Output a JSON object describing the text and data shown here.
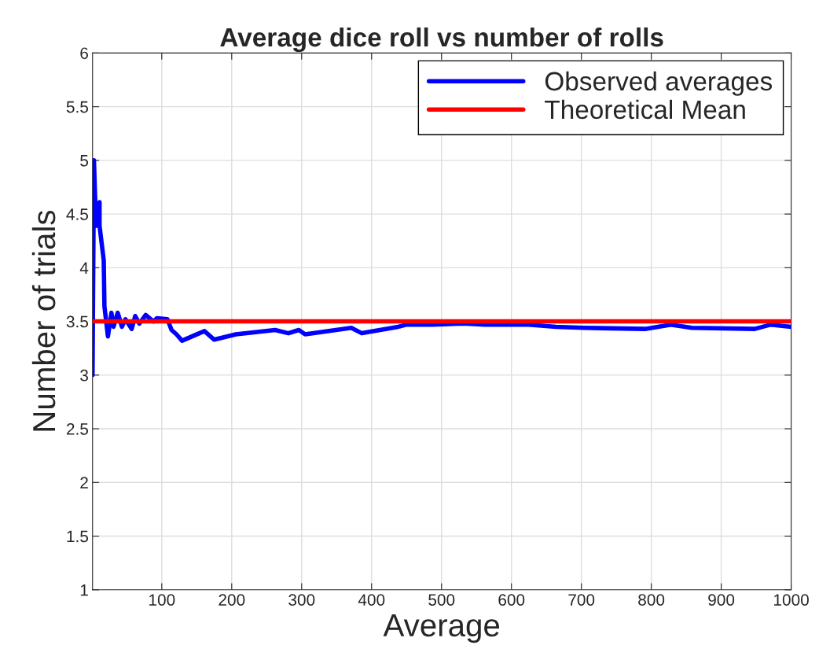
{
  "chart_data": {
    "type": "line",
    "title": "Average dice roll vs number of rolls",
    "xlabel": "Average",
    "ylabel": "Number of trials",
    "series": [
      {
        "name": "Observed averages",
        "color": "#0000ff",
        "x": [
          1,
          3,
          6,
          11,
          11,
          17,
          18,
          23,
          28,
          31,
          37,
          43,
          48,
          57,
          62,
          68,
          77,
          88,
          93,
          108,
          114,
          121,
          129,
          161,
          175,
          206,
          262,
          281,
          296,
          305,
          371,
          386,
          438,
          450,
          487,
          532,
          562,
          625,
          664,
          704,
          791,
          828,
          858,
          948,
          971,
          1000
        ],
        "values": [
          3,
          5,
          4.39,
          4.61,
          4.39,
          4.07,
          3.64,
          3.36,
          3.58,
          3.45,
          3.58,
          3.45,
          3.52,
          3.43,
          3.55,
          3.48,
          3.56,
          3.5,
          3.53,
          3.52,
          3.42,
          3.38,
          3.32,
          3.41,
          3.33,
          3.38,
          3.42,
          3.39,
          3.42,
          3.38,
          3.44,
          3.39,
          3.45,
          3.47,
          3.47,
          3.48,
          3.47,
          3.47,
          3.45,
          3.44,
          3.43,
          3.47,
          3.44,
          3.43,
          3.47,
          3.45
        ]
      }
    ],
    "ref_lines": [
      {
        "axis": "y",
        "value": 3.5,
        "label": "Theoretical Mean",
        "color": "#ff0000",
        "line_style": "solid"
      }
    ],
    "xlim": [
      1,
      1000
    ],
    "xticks": [
      100,
      200,
      300,
      400,
      500,
      600,
      700,
      800,
      900,
      1000
    ],
    "ylim": [
      1,
      6
    ],
    "yticks": [
      1,
      1.5,
      2,
      2.5,
      3,
      3.5,
      4,
      4.5,
      5,
      5.5,
      6
    ],
    "grid": true,
    "legend": "top right",
    "line_style": "solid",
    "marker": "none"
  }
}
